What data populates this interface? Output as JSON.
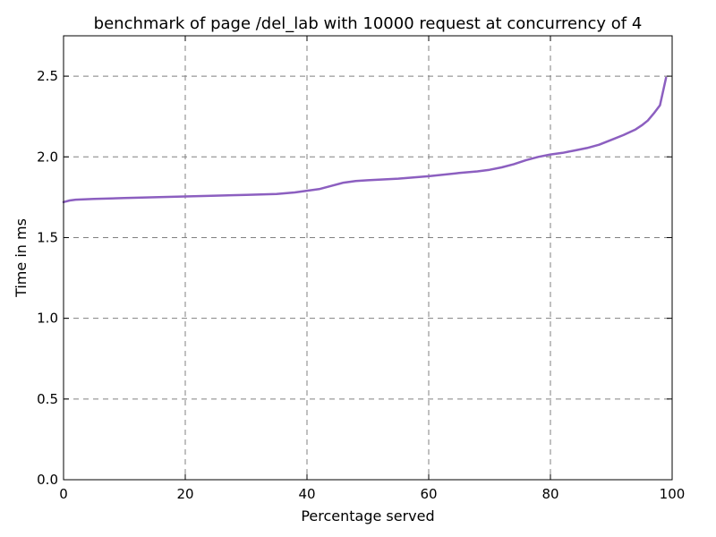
{
  "chart_data": {
    "type": "line",
    "title": "benchmark of page /del_lab with 10000 request at concurrency of 4",
    "xlabel": "Percentage served",
    "ylabel": "Time in ms",
    "xlim": [
      0,
      100
    ],
    "ylim": [
      0,
      2.75
    ],
    "xticks": [
      0,
      20,
      40,
      60,
      80,
      100
    ],
    "yticks": [
      0.0,
      0.5,
      1.0,
      1.5,
      2.0,
      2.5
    ],
    "xtick_labels": [
      "0",
      "20",
      "40",
      "60",
      "80",
      "100"
    ],
    "ytick_labels": [
      "0.0",
      "0.5",
      "1.0",
      "1.5",
      "2.0",
      "2.5"
    ],
    "grid": true,
    "series_color": "#8c5fc0",
    "series": [
      {
        "x": [
          0,
          1,
          2,
          5,
          10,
          15,
          20,
          25,
          30,
          35,
          38,
          40,
          42,
          44,
          46,
          48,
          50,
          55,
          60,
          65,
          68,
          70,
          72,
          74,
          76,
          78,
          80,
          82,
          84,
          86,
          88,
          90,
          92,
          94,
          95,
          96,
          97,
          98,
          99
        ],
        "y": [
          1.72,
          1.73,
          1.735,
          1.74,
          1.745,
          1.75,
          1.755,
          1.76,
          1.765,
          1.77,
          1.78,
          1.79,
          1.8,
          1.82,
          1.84,
          1.85,
          1.855,
          1.865,
          1.88,
          1.9,
          1.91,
          1.92,
          1.935,
          1.955,
          1.98,
          2.0,
          2.015,
          2.025,
          2.04,
          2.055,
          2.075,
          2.105,
          2.135,
          2.17,
          2.195,
          2.225,
          2.27,
          2.32,
          2.49
        ]
      }
    ]
  }
}
